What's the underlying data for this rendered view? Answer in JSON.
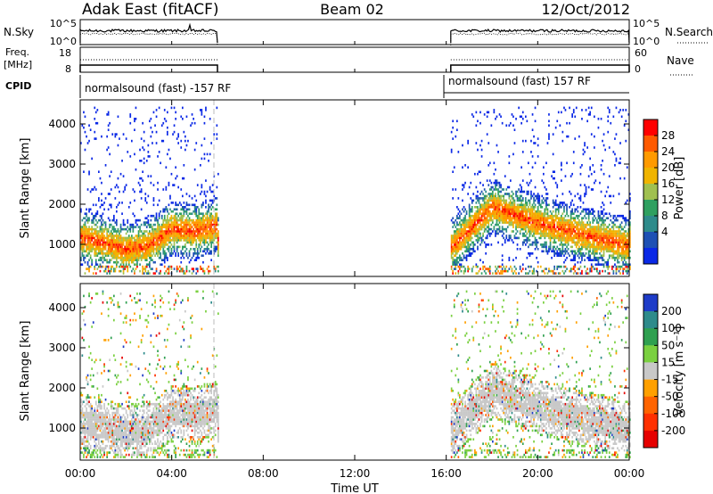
{
  "header": {
    "station": "Adak East (fitACF)",
    "beam": "Beam 02",
    "date": "12/Oct/2012"
  },
  "strips": {
    "nsky_label": "N.Sky",
    "nsky_ticks": [
      "10^5",
      "10^0"
    ],
    "nsearch_label": "N.Search",
    "nsearch_ticks": [
      "10^5",
      "10^0"
    ],
    "freq_label_1": "Freq.",
    "freq_label_2": "[MHz]",
    "freq_ticks": [
      "18",
      "8"
    ],
    "nave_label": "Nave",
    "nave_ticks": [
      "60",
      "0"
    ],
    "cpid_label": "CPID",
    "cpid_segments": [
      {
        "label": "normalsound (fast) -157 RF",
        "start_h": 0,
        "end_h": 6
      },
      {
        "label": "normalsound (fast) 157 RF",
        "start_h": 16.2,
        "end_h": 24
      }
    ]
  },
  "chart_data": [
    {
      "type": "heatmap",
      "name": "power",
      "ylabel": "Slant Range [km]",
      "xlim_hours": [
        0,
        24
      ],
      "ylim": [
        200,
        4600
      ],
      "yticks": [
        "4000",
        "3000",
        "2000",
        "1000"
      ],
      "colorbar_label": "Power [dB]",
      "colorbar_ticks": [
        "28",
        "24",
        "20",
        "16",
        "12",
        "8",
        "4"
      ],
      "colorbar_colors": [
        "#ff0000",
        "#ff5a00",
        "#ff9a00",
        "#f0b400",
        "#a0c050",
        "#2fa060",
        "#2e8b8b",
        "#1e50b4",
        "#0a28e6"
      ],
      "data_segments_hours": [
        [
          0,
          6
        ],
        [
          16.2,
          24
        ]
      ],
      "main_band": [
        {
          "t": 0,
          "range": 1150
        },
        {
          "t": 1,
          "range": 1000
        },
        {
          "t": 2,
          "range": 850
        },
        {
          "t": 3,
          "range": 950
        },
        {
          "t": 4,
          "range": 1350
        },
        {
          "t": 5,
          "range": 1300
        },
        {
          "t": 6,
          "range": 1450
        },
        {
          "t": 16.2,
          "range": 900
        },
        {
          "t": 18,
          "range": 1900
        },
        {
          "t": 20,
          "range": 1500
        },
        {
          "t": 22,
          "range": 1200
        },
        {
          "t": 24,
          "range": 950
        }
      ]
    },
    {
      "type": "heatmap",
      "name": "velocity",
      "ylabel": "Slant Range [km]",
      "xlim_hours": [
        0,
        24
      ],
      "ylim": [
        200,
        4600
      ],
      "yticks": [
        "4000",
        "3000",
        "2000",
        "1000"
      ],
      "colorbar_label": "Velocity [m s⁻¹]",
      "colorbar_ticks": [
        "200",
        "100",
        "50",
        "15",
        "-15",
        "-50",
        "-100",
        "-200"
      ],
      "colorbar_colors": [
        "#1e3cc8",
        "#2e8b8b",
        "#2fa050",
        "#7ad040",
        "#c8c8c8",
        "#ffa000",
        "#ff6400",
        "#ff3000",
        "#e60000"
      ],
      "data_segments_hours": [
        [
          0,
          6
        ],
        [
          16.2,
          24
        ]
      ]
    }
  ],
  "xaxis": {
    "label": "Time UT",
    "ticks": [
      "00:00",
      "04:00",
      "08:00",
      "12:00",
      "16:00",
      "20:00",
      "00:00"
    ]
  }
}
